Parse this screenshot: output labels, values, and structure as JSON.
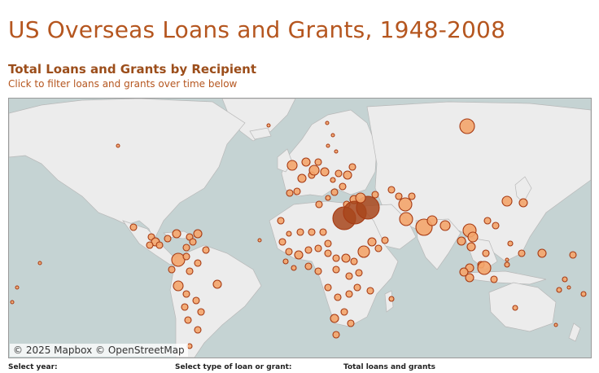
{
  "page": {
    "title": "US Overseas Loans and Grants, 1948-2008",
    "subtitle": "Total Loans and Grants by Recipient",
    "hint": "Click to filter loans and grants over time below"
  },
  "map": {
    "attribution_mapbox": "© 2025 Mapbox",
    "attribution_osm": "© OpenStreetMap",
    "colors": {
      "water": "#c5d3d3",
      "land": "#ececec",
      "border": "#b8b8b8",
      "bubble_fill": "#f4a56b",
      "bubble_stroke": "#a63a13",
      "bubble_large_fill": "#a8471c"
    }
  },
  "filters": {
    "year_label": "Select year:",
    "type_label": "Select type of loan or grant:",
    "total_label": "Total loans and grants"
  }
}
